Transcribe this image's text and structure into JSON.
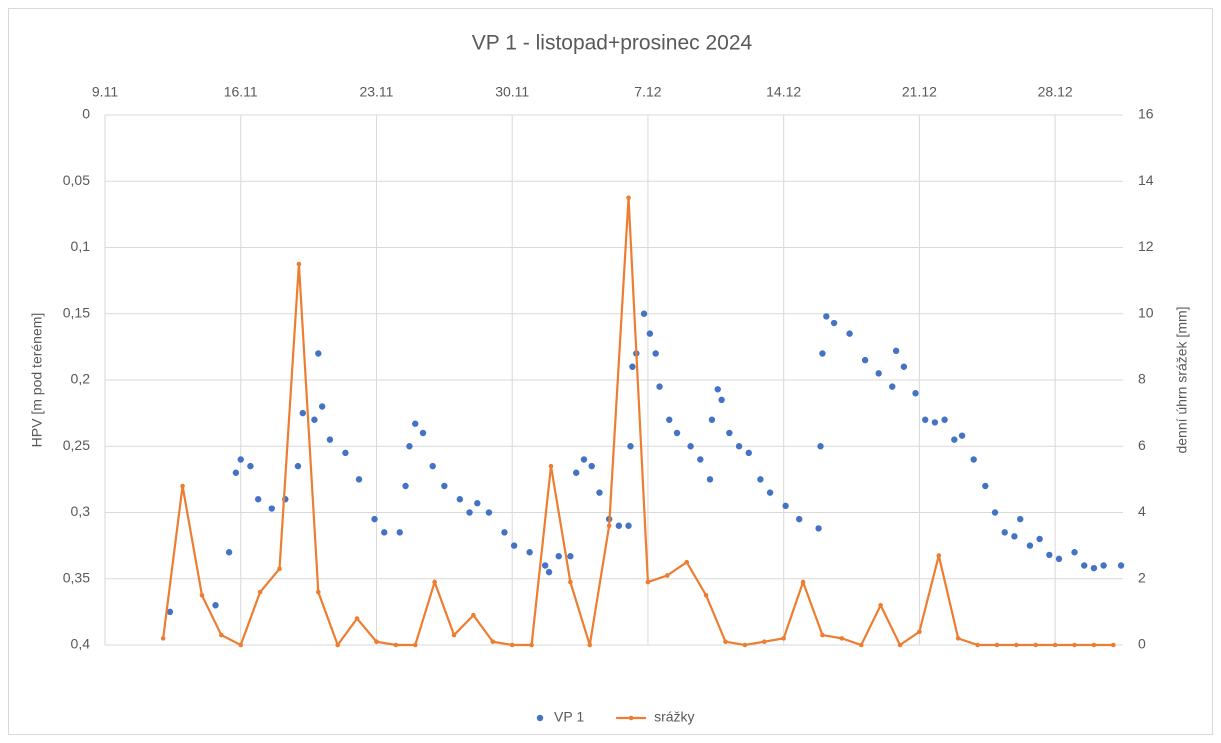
{
  "chart_data": {
    "type": "scatter+line",
    "title": "VP 1 - listopad+prosinec 2024",
    "y_label": "HPV [m pod terénem]",
    "y2_label": "denní úhrn srážek [mm]",
    "xlim": [
      0,
      52.5
    ],
    "xticks": [
      {
        "value": 0,
        "label": "9.11"
      },
      {
        "value": 7,
        "label": "16.11"
      },
      {
        "value": 14,
        "label": "23.11"
      },
      {
        "value": 21,
        "label": "30.11"
      },
      {
        "value": 28,
        "label": "7.12"
      },
      {
        "value": 35,
        "label": "14.12"
      },
      {
        "value": 42,
        "label": "21.12"
      },
      {
        "value": 49,
        "label": "28.12"
      }
    ],
    "ylim": [
      0,
      0.4
    ],
    "y_inverted": true,
    "yticks": [
      0,
      {
        "value": 0.05,
        "label": "0,05"
      },
      {
        "value": 0.1,
        "label": "0,1"
      },
      {
        "value": 0.15,
        "label": "0,15"
      },
      {
        "value": 0.2,
        "label": "0,2"
      },
      {
        "value": 0.25,
        "label": "0,25"
      },
      {
        "value": 0.3,
        "label": "0,3"
      },
      {
        "value": 0.35,
        "label": "0,35"
      },
      {
        "value": 0.4,
        "label": "0,4"
      }
    ],
    "y2lim": [
      0,
      16
    ],
    "y2ticks": [
      0,
      2,
      4,
      6,
      8,
      10,
      12,
      14,
      16
    ],
    "grid": true,
    "legend": "bottom",
    "series": [
      {
        "name": "VP 1",
        "type": "scatter",
        "color": "#4472c4",
        "x": [
          3.35,
          5.7,
          6.4,
          6.75,
          7.0,
          7.5,
          7.9,
          8.6,
          9.3,
          9.95,
          10.2,
          10.8,
          11.0,
          11.2,
          11.6,
          12.4,
          13.1,
          13.9,
          14.4,
          15.2,
          15.5,
          15.7,
          16.0,
          16.4,
          16.9,
          17.5,
          18.3,
          18.8,
          19.2,
          19.8,
          20.6,
          21.1,
          21.9,
          22.7,
          22.9,
          23.4,
          24.0,
          24.3,
          24.7,
          25.1,
          25.5,
          26.0,
          26.5,
          27.0,
          27.1,
          27.2,
          27.4,
          27.8,
          28.1,
          28.4,
          28.6,
          29.1,
          29.5,
          30.2,
          30.7,
          31.2,
          31.3,
          31.6,
          31.8,
          32.2,
          32.7,
          33.2,
          33.8,
          34.3,
          35.1,
          35.8,
          36.8,
          36.9,
          37.0,
          37.2,
          37.6,
          38.4,
          39.2,
          39.9,
          40.6,
          40.8,
          41.2,
          41.8,
          42.3,
          42.8,
          43.3,
          43.8,
          44.2,
          44.8,
          45.4,
          45.9,
          46.4,
          46.9,
          47.2,
          47.7,
          48.2,
          48.7,
          49.2,
          50.0,
          50.5,
          51.0,
          51.5,
          52.4
        ],
        "values": [
          0.375,
          0.37,
          0.33,
          0.27,
          0.26,
          0.265,
          0.29,
          0.297,
          0.29,
          0.265,
          0.225,
          0.23,
          0.18,
          0.22,
          0.245,
          0.255,
          0.275,
          0.305,
          0.315,
          0.315,
          0.28,
          0.25,
          0.233,
          0.24,
          0.265,
          0.28,
          0.29,
          0.3,
          0.293,
          0.3,
          0.315,
          0.325,
          0.33,
          0.34,
          0.345,
          0.333,
          0.333,
          0.27,
          0.26,
          0.265,
          0.285,
          0.305,
          0.31,
          0.31,
          0.25,
          0.19,
          0.18,
          0.15,
          0.165,
          0.18,
          0.205,
          0.23,
          0.24,
          0.25,
          0.26,
          0.275,
          0.23,
          0.207,
          0.215,
          0.24,
          0.25,
          0.255,
          0.275,
          0.285,
          0.295,
          0.305,
          0.312,
          0.25,
          0.18,
          0.152,
          0.157,
          0.165,
          0.185,
          0.195,
          0.205,
          0.178,
          0.19,
          0.21,
          0.23,
          0.232,
          0.23,
          0.245,
          0.242,
          0.26,
          0.28,
          0.3,
          0.315,
          0.318,
          0.305,
          0.325,
          0.32,
          0.332,
          0.335,
          0.33,
          0.34,
          0.342,
          0.34,
          0.34
        ]
      },
      {
        "name": "srážky",
        "type": "line",
        "axis": "y2",
        "color": "#ed7d31",
        "x": [
          3,
          4,
          5,
          6,
          7,
          8,
          9,
          10,
          11,
          12,
          13,
          14,
          15,
          16,
          17,
          18,
          19,
          20,
          21,
          22,
          23,
          24,
          25,
          26,
          27,
          28,
          29,
          30,
          31,
          32,
          33,
          34,
          35,
          36,
          37,
          38,
          39,
          40,
          41,
          42,
          43,
          44,
          45,
          46,
          47,
          48,
          49,
          50,
          51,
          52
        ],
        "values": [
          0.2,
          4.8,
          1.5,
          0.3,
          0,
          1.6,
          2.3,
          11.5,
          1.6,
          0,
          0.8,
          0.1,
          0,
          0,
          1.9,
          0.3,
          0.9,
          0.1,
          0,
          0,
          5.4,
          1.9,
          0,
          3.6,
          13.5,
          1.9,
          2.1,
          2.5,
          1.5,
          0.1,
          0,
          0.1,
          0.2,
          1.9,
          0.3,
          0.2,
          0,
          1.2,
          0,
          0.4,
          2.7,
          0.2,
          0,
          0,
          0,
          0,
          0,
          0,
          0,
          0
        ]
      }
    ]
  }
}
